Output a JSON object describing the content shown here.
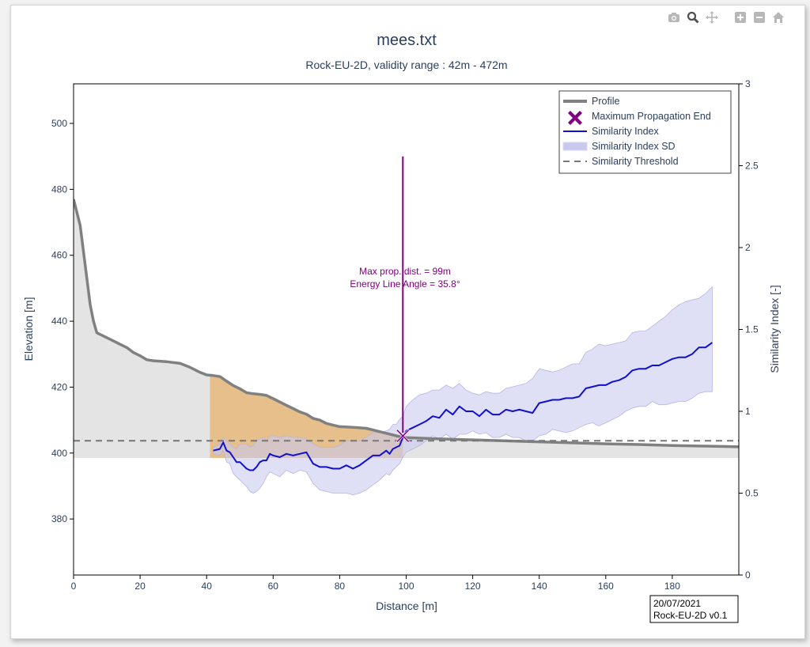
{
  "modebar": {
    "buttons": [
      {
        "icon": "camera-icon",
        "title": "Download plot as a png"
      },
      {
        "icon": "zoom-icon",
        "title": "Zoom"
      },
      {
        "icon": "pan-icon",
        "title": "Pan"
      },
      {
        "icon": "zoom-in-icon",
        "title": "Zoom in"
      },
      {
        "icon": "zoom-out-icon",
        "title": "Zoom out"
      },
      {
        "icon": "reset-axes-icon",
        "title": "Reset axes"
      }
    ]
  },
  "colors": {
    "profile": "#808080",
    "profile_fill": "#e4e4e4",
    "propagation_fill": "#e8b97a",
    "similarity": "#1010d0",
    "similarity_sd": "#c9c9ee",
    "marker": "#800080",
    "threshold": "#777777",
    "axis_text": "#2a3f5f"
  },
  "chart_data": {
    "type": "line",
    "title": "mees.txt",
    "subtitle": "Rock-EU-2D, validity range : 42m - 472m",
    "xlabel": "Distance [m]",
    "ylabel": "Elevation [m]",
    "y2label": "Similarity Index [-]",
    "xlim": [
      0,
      200
    ],
    "ylim": [
      363,
      512
    ],
    "y2lim": [
      0,
      3
    ],
    "xticks": [
      0,
      20,
      40,
      60,
      80,
      100,
      120,
      140,
      160,
      180
    ],
    "yticks": [
      380,
      400,
      420,
      440,
      460,
      480,
      500
    ],
    "y2ticks": [
      0,
      0.5,
      1,
      1.5,
      2,
      2.5,
      3
    ],
    "y2ticklabels": [
      "0",
      "0.5",
      "1",
      "1.5",
      "2",
      "2.5",
      "3"
    ],
    "grid": false,
    "legend_position": "top-right",
    "legend": [
      "Profile",
      "Maximum Propagation End",
      "Similarity Index",
      "Similarity Index SD",
      "Similarity Threshold"
    ],
    "profile_base": 398.5,
    "profile": {
      "name": "Profile",
      "x": [
        0,
        1,
        2,
        3,
        4,
        5,
        6,
        7,
        8,
        10,
        12,
        14,
        16,
        18,
        20,
        22,
        24,
        28,
        32,
        35,
        38,
        40,
        42,
        44,
        46,
        48,
        50,
        52,
        54,
        56,
        58,
        60,
        62,
        64,
        66,
        68,
        70,
        72,
        74,
        76,
        78,
        80,
        84,
        88,
        90,
        94,
        98,
        100,
        110,
        120,
        130,
        140,
        150,
        160,
        170,
        180,
        190,
        200
      ],
      "y": [
        477,
        473,
        469,
        461,
        453,
        445,
        440,
        436.5,
        436,
        435,
        434,
        433,
        432,
        430.5,
        429.5,
        428.3,
        428,
        427.7,
        427.2,
        426,
        424.5,
        423.7,
        423.5,
        423.2,
        421.8,
        420.5,
        419.5,
        418.3,
        418,
        417.8,
        417.5,
        416.5,
        415.5,
        414.5,
        413.5,
        412.5,
        411.8,
        410.5,
        410,
        409,
        408.5,
        408,
        407.8,
        407.5,
        407,
        406,
        405,
        404.7,
        404.3,
        404,
        403.7,
        403.4,
        403.1,
        402.8,
        402.6,
        402.3,
        402.1,
        401.9
      ]
    },
    "propagation_area": {
      "x_start": 41,
      "x_end": 99
    },
    "similarity_index": {
      "name": "Similarity Index",
      "x": [
        42,
        44,
        45,
        46,
        47,
        48,
        49,
        50,
        51,
        52,
        53,
        54,
        55,
        56,
        57,
        58,
        59,
        60,
        62,
        64,
        66,
        68,
        70,
        72,
        74,
        76,
        78,
        80,
        82,
        84,
        86,
        88,
        90,
        92,
        94,
        95,
        96,
        97,
        98,
        99,
        100,
        102,
        104,
        106,
        108,
        110,
        112,
        114,
        116,
        118,
        120,
        122,
        124,
        126,
        128,
        130,
        132,
        134,
        136,
        138,
        140,
        142,
        144,
        146,
        148,
        150,
        152,
        154,
        156,
        158,
        160,
        162,
        164,
        166,
        168,
        170,
        172,
        174,
        176,
        178,
        180,
        182,
        184,
        186,
        188,
        190,
        192
      ],
      "y": [
        0.76,
        0.77,
        0.81,
        0.76,
        0.75,
        0.72,
        0.69,
        0.69,
        0.67,
        0.65,
        0.64,
        0.64,
        0.66,
        0.69,
        0.7,
        0.7,
        0.74,
        0.73,
        0.72,
        0.74,
        0.73,
        0.74,
        0.75,
        0.68,
        0.66,
        0.66,
        0.65,
        0.65,
        0.67,
        0.65,
        0.67,
        0.7,
        0.73,
        0.73,
        0.76,
        0.74,
        0.77,
        0.78,
        0.79,
        0.84,
        0.88,
        0.9,
        0.92,
        0.94,
        0.97,
        0.96,
        1.01,
        0.98,
        1.03,
        1.0,
        1.0,
        0.97,
        1.01,
        0.98,
        0.98,
        1.01,
        1.0,
        1.01,
        1.0,
        0.99,
        1.05,
        1.06,
        1.07,
        1.07,
        1.08,
        1.08,
        1.09,
        1.14,
        1.15,
        1.16,
        1.16,
        1.18,
        1.19,
        1.21,
        1.25,
        1.26,
        1.26,
        1.28,
        1.28,
        1.3,
        1.32,
        1.33,
        1.33,
        1.35,
        1.39,
        1.39,
        1.42
      ]
    },
    "similarity_sd": {
      "name": "Similarity Index SD",
      "upper": [
        0.78,
        0.8,
        0.84,
        0.82,
        0.8,
        0.78,
        0.77,
        0.8,
        0.8,
        0.8,
        0.78,
        0.79,
        0.82,
        0.83,
        0.84,
        0.82,
        0.85,
        0.85,
        0.84,
        0.85,
        0.84,
        0.84,
        0.83,
        0.8,
        0.78,
        0.78,
        0.78,
        0.79,
        0.82,
        0.82,
        0.82,
        0.84,
        0.87,
        0.87,
        0.88,
        0.89,
        0.92,
        0.92,
        0.95,
        0.97,
        1.03,
        1.07,
        1.1,
        1.11,
        1.13,
        1.13,
        1.16,
        1.14,
        1.17,
        1.13,
        1.11,
        1.1,
        1.12,
        1.11,
        1.11,
        1.14,
        1.15,
        1.16,
        1.17,
        1.2,
        1.26,
        1.25,
        1.24,
        1.25,
        1.27,
        1.29,
        1.29,
        1.36,
        1.38,
        1.41,
        1.4,
        1.41,
        1.42,
        1.43,
        1.48,
        1.49,
        1.49,
        1.52,
        1.55,
        1.58,
        1.62,
        1.65,
        1.67,
        1.68,
        1.69,
        1.72,
        1.76
      ],
      "lower": [
        0.74,
        0.73,
        0.76,
        0.69,
        0.68,
        0.62,
        0.6,
        0.58,
        0.56,
        0.54,
        0.51,
        0.5,
        0.51,
        0.53,
        0.56,
        0.6,
        0.63,
        0.62,
        0.6,
        0.64,
        0.62,
        0.64,
        0.63,
        0.56,
        0.52,
        0.51,
        0.5,
        0.5,
        0.5,
        0.49,
        0.5,
        0.52,
        0.55,
        0.58,
        0.62,
        0.61,
        0.64,
        0.66,
        0.68,
        0.72,
        0.75,
        0.77,
        0.79,
        0.82,
        0.85,
        0.83,
        0.86,
        0.83,
        0.86,
        0.86,
        0.88,
        0.86,
        0.87,
        0.84,
        0.84,
        0.86,
        0.84,
        0.84,
        0.82,
        0.82,
        0.85,
        0.86,
        0.89,
        0.88,
        0.87,
        0.88,
        0.9,
        0.92,
        0.93,
        0.91,
        0.93,
        0.95,
        0.97,
        1.0,
        1.02,
        1.03,
        1.03,
        1.06,
        1.04,
        1.04,
        1.05,
        1.06,
        1.06,
        1.08,
        1.11,
        1.12,
        1.12
      ]
    },
    "max_propagation_end": {
      "name": "Maximum Propagation End",
      "x": 99,
      "y": 405.2,
      "annotation": [
        "Max prop. dist. = 99m",
        "Energy Line Angle = 35.8°"
      ],
      "annotation_anchor_y": 490
    },
    "similarity_threshold": {
      "name": "Similarity Threshold",
      "y": 0.82
    },
    "watermark": [
      "20/07/2021",
      "Rock-EU-2D v0.1"
    ]
  }
}
